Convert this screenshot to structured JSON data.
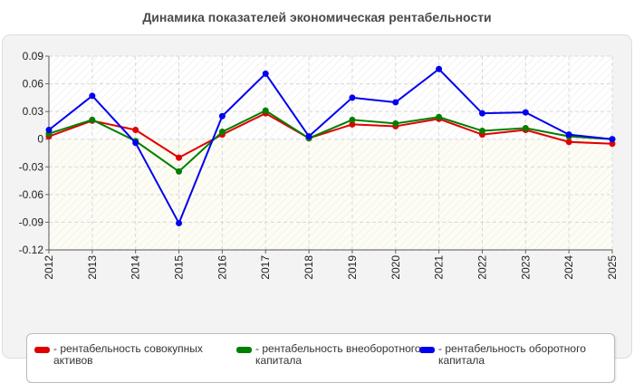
{
  "chart_data": {
    "type": "line",
    "title": "Динамика показателей экономическая рентабельности",
    "x": [
      "2012",
      "2013",
      "2014",
      "2015",
      "2016",
      "2017",
      "2018",
      "2019",
      "2020",
      "2021",
      "2022",
      "2023",
      "2024",
      "2025"
    ],
    "ylim": [
      -0.12,
      0.09
    ],
    "yticks": [
      0.09,
      0.06,
      0.03,
      0,
      -0.03,
      -0.06,
      -0.09,
      -0.12
    ],
    "ytick_labels": [
      "0.09",
      "0.06",
      "0.03",
      "0",
      "-0.03",
      "-0.06",
      "-0.09",
      "-0.12"
    ],
    "grid": true,
    "legend_position": "bottom",
    "series": [
      {
        "name": "рентабельность совокупных активов",
        "color": "#e00000",
        "values": [
          0.003,
          0.02,
          0.01,
          -0.02,
          0.005,
          0.028,
          0.001,
          0.016,
          0.014,
          0.022,
          0.005,
          0.01,
          -0.003,
          -0.005
        ]
      },
      {
        "name": "рентабельность внеоборотного капитала",
        "color": "#007f00",
        "values": [
          0.006,
          0.021,
          -0.002,
          -0.035,
          0.008,
          0.031,
          0.001,
          0.021,
          0.017,
          0.024,
          0.009,
          0.012,
          0.003,
          0.0
        ]
      },
      {
        "name": "рентабельность оборотного капитала",
        "color": "#0000ee",
        "values": [
          0.01,
          0.047,
          -0.004,
          -0.091,
          0.025,
          0.071,
          0.003,
          0.045,
          0.04,
          0.076,
          0.028,
          0.029,
          0.005,
          0.0
        ]
      }
    ]
  },
  "legend": {
    "prefix": "-",
    "items": [
      {
        "label": "рентабельность совокупных активов",
        "color": "#e00000"
      },
      {
        "label": "рентабельность внеоборотного капитала",
        "color": "#007f00"
      },
      {
        "label": "рентабельность оборотного капитала",
        "color": "#0000ee"
      }
    ]
  }
}
